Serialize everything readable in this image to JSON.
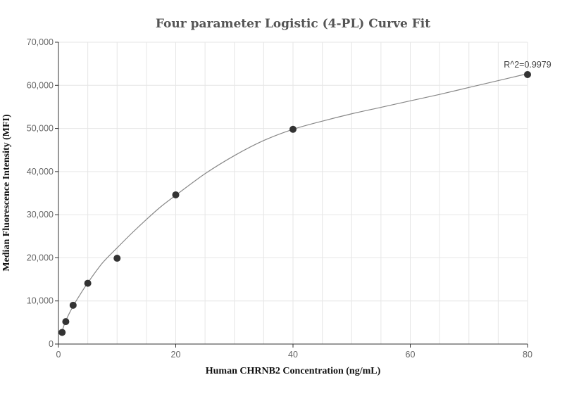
{
  "chart_data": {
    "type": "scatter",
    "title": "Four parameter Logistic (4-PL) Curve Fit",
    "xlabel": "Human CHRNB2 Concentration (ng/mL)",
    "ylabel": "Median Fluorescence Intensity (MFI)",
    "xlim": [
      0,
      80
    ],
    "ylim": [
      0,
      70000
    ],
    "x_ticks": [
      0,
      20,
      40,
      60,
      80
    ],
    "x_tick_labels": [
      "0",
      "20",
      "40",
      "60",
      "80"
    ],
    "y_ticks": [
      0,
      10000,
      20000,
      30000,
      40000,
      50000,
      60000,
      70000
    ],
    "y_tick_labels": [
      "0",
      "10,000",
      "20,000",
      "30,000",
      "40,000",
      "50,000",
      "60,000",
      "70,000"
    ],
    "grid": true,
    "points": [
      {
        "x": 0.625,
        "y": 2700
      },
      {
        "x": 1.25,
        "y": 5200
      },
      {
        "x": 2.5,
        "y": 9000
      },
      {
        "x": 5,
        "y": 14100
      },
      {
        "x": 10,
        "y": 19900
      },
      {
        "x": 20,
        "y": 34600
      },
      {
        "x": 40,
        "y": 49800
      },
      {
        "x": 80,
        "y": 62500
      }
    ],
    "fit_curve": [
      [
        0.625,
        3000
      ],
      [
        1.25,
        5400
      ],
      [
        2.5,
        8800
      ],
      [
        3.75,
        11600
      ],
      [
        5,
        14200
      ],
      [
        7.5,
        18800
      ],
      [
        10,
        22300
      ],
      [
        12.5,
        25700
      ],
      [
        15,
        28900
      ],
      [
        17.5,
        31900
      ],
      [
        20,
        34500
      ],
      [
        25,
        39500
      ],
      [
        30,
        43700
      ],
      [
        35,
        47200
      ],
      [
        40,
        49800
      ],
      [
        45,
        51700
      ],
      [
        50,
        53400
      ],
      [
        55,
        54900
      ],
      [
        60,
        56400
      ],
      [
        65,
        57900
      ],
      [
        70,
        59500
      ],
      [
        75,
        61100
      ],
      [
        80,
        62700
      ]
    ],
    "annotation": "R^2=0.9979",
    "colors": {
      "marker": "#333333",
      "curve": "#888888",
      "grid": "#e6e6e6",
      "axis": "#333333"
    }
  }
}
